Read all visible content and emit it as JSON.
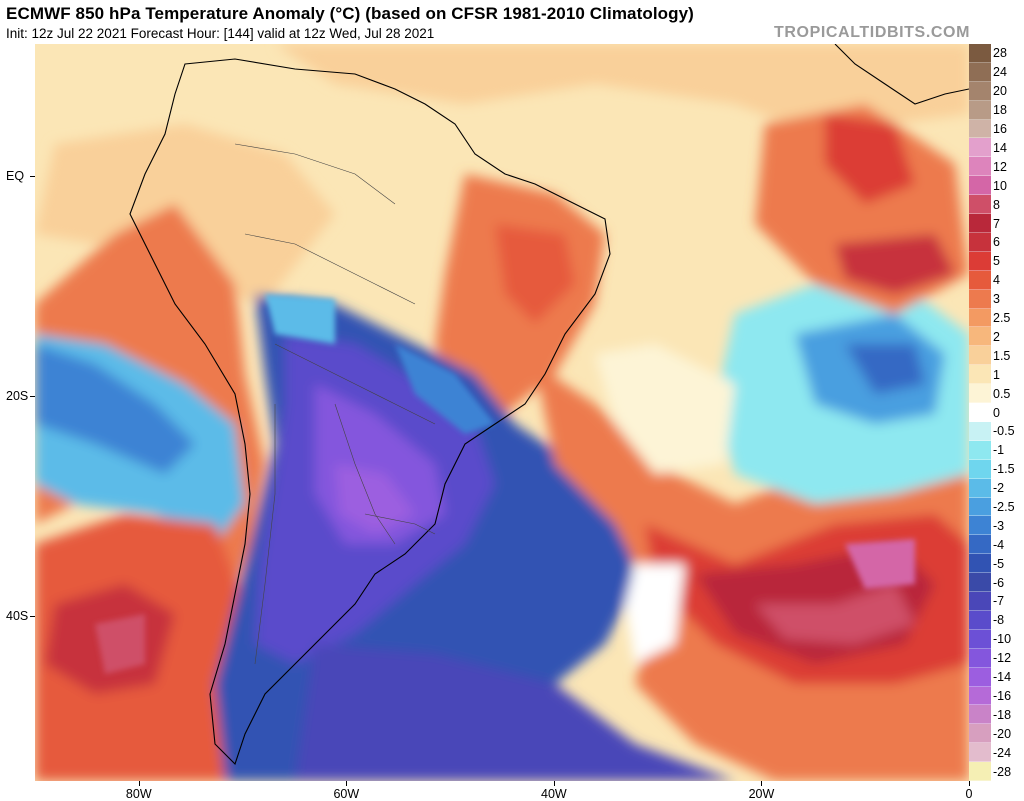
{
  "header": {
    "title": "ECMWF 850 hPa Temperature Anomaly (°C) (based on CFSR 1981-2010 Climatology)",
    "subtitle": "Init: 12z Jul 22 2021   Forecast Hour: [144]   valid at 12z Wed, Jul 28 2021",
    "site": "TROPICALTIDBITS.COM"
  },
  "chart_data": {
    "type": "heatmap",
    "title": "ECMWF 850 hPa Temperature Anomaly (°C) (based on CFSR 1981-2010 Climatology)",
    "variable": "850 hPa temperature anomaly",
    "units": "°C",
    "projection": "cylindrical lat/lon",
    "xlim": [
      -90,
      0
    ],
    "ylim": [
      -55,
      12
    ],
    "x_ticks": [
      {
        "value": -80,
        "label": "80W"
      },
      {
        "value": -60,
        "label": "60W"
      },
      {
        "value": -40,
        "label": "40W"
      },
      {
        "value": -20,
        "label": "20W"
      },
      {
        "value": 0,
        "label": "0"
      }
    ],
    "y_ticks": [
      {
        "value": 0,
        "label": "EQ"
      },
      {
        "value": -20,
        "label": "20S"
      },
      {
        "value": -40,
        "label": "40S"
      }
    ],
    "colorbar": [
      {
        "label": "28",
        "color": "#7b5a40"
      },
      {
        "label": "24",
        "color": "#8f6e55"
      },
      {
        "label": "20",
        "color": "#a4846d"
      },
      {
        "label": "18",
        "color": "#b89b87"
      },
      {
        "label": "16",
        "color": "#cfb3a7"
      },
      {
        "label": "14",
        "color": "#e3a0cc"
      },
      {
        "label": "12",
        "color": "#dd84bc"
      },
      {
        "label": "10",
        "color": "#d466a7"
      },
      {
        "label": "8",
        "color": "#cf4f68"
      },
      {
        "label": "7",
        "color": "#b9283a"
      },
      {
        "label": "6",
        "color": "#c7323c"
      },
      {
        "label": "5",
        "color": "#dc3c36"
      },
      {
        "label": "4",
        "color": "#e65a3c"
      },
      {
        "label": "3",
        "color": "#ed7a4e"
      },
      {
        "label": "2.5",
        "color": "#f39a62"
      },
      {
        "label": "2",
        "color": "#f7b77c"
      },
      {
        "label": "1.5",
        "color": "#f9d09a"
      },
      {
        "label": "1",
        "color": "#fbe6b6"
      },
      {
        "label": "0.5",
        "color": "#fdf4d6"
      },
      {
        "label": "0",
        "color": "#ffffff"
      },
      {
        "label": "-0.5",
        "color": "#c8f2f4"
      },
      {
        "label": "-1",
        "color": "#8ee8f0"
      },
      {
        "label": "-1.5",
        "color": "#6fd6ee"
      },
      {
        "label": "-2",
        "color": "#5bbbe8"
      },
      {
        "label": "-2.5",
        "color": "#4a9fe0"
      },
      {
        "label": "-3",
        "color": "#3d83d4"
      },
      {
        "label": "-4",
        "color": "#3569c4"
      },
      {
        "label": "-5",
        "color": "#3153b3"
      },
      {
        "label": "-6",
        "color": "#3a4aa8"
      },
      {
        "label": "-7",
        "color": "#4a47b8"
      },
      {
        "label": "-8",
        "color": "#5a4ccb"
      },
      {
        "label": "-10",
        "color": "#6c50d6"
      },
      {
        "label": "-12",
        "color": "#8456dd"
      },
      {
        "label": "-14",
        "color": "#9c5ee0"
      },
      {
        "label": "-16",
        "color": "#b56ad8"
      },
      {
        "label": "-18",
        "color": "#c983c8"
      },
      {
        "label": "-20",
        "color": "#d79fbf"
      },
      {
        "label": "-24",
        "color": "#e3bccd"
      },
      {
        "label": "-28",
        "color": "#f5efb4"
      }
    ],
    "features": [
      {
        "name": "cold anomaly over Argentina, Paraguay, Uruguay and S Brazil",
        "min_anomaly": -16
      },
      {
        "name": "warm anomaly South Atlantic near 10-20W 35S",
        "max_anomaly": 10
      },
      {
        "name": "warm anomaly SE Pacific near 85W 40S",
        "max_anomaly": 8
      },
      {
        "name": "warm anomaly central Brazil",
        "max_anomaly": 5
      },
      {
        "name": "cool anomaly S Atlantic near 20-10W 15-20S",
        "min_anomaly": -4
      }
    ],
    "grid": false,
    "legend_position": "right"
  }
}
